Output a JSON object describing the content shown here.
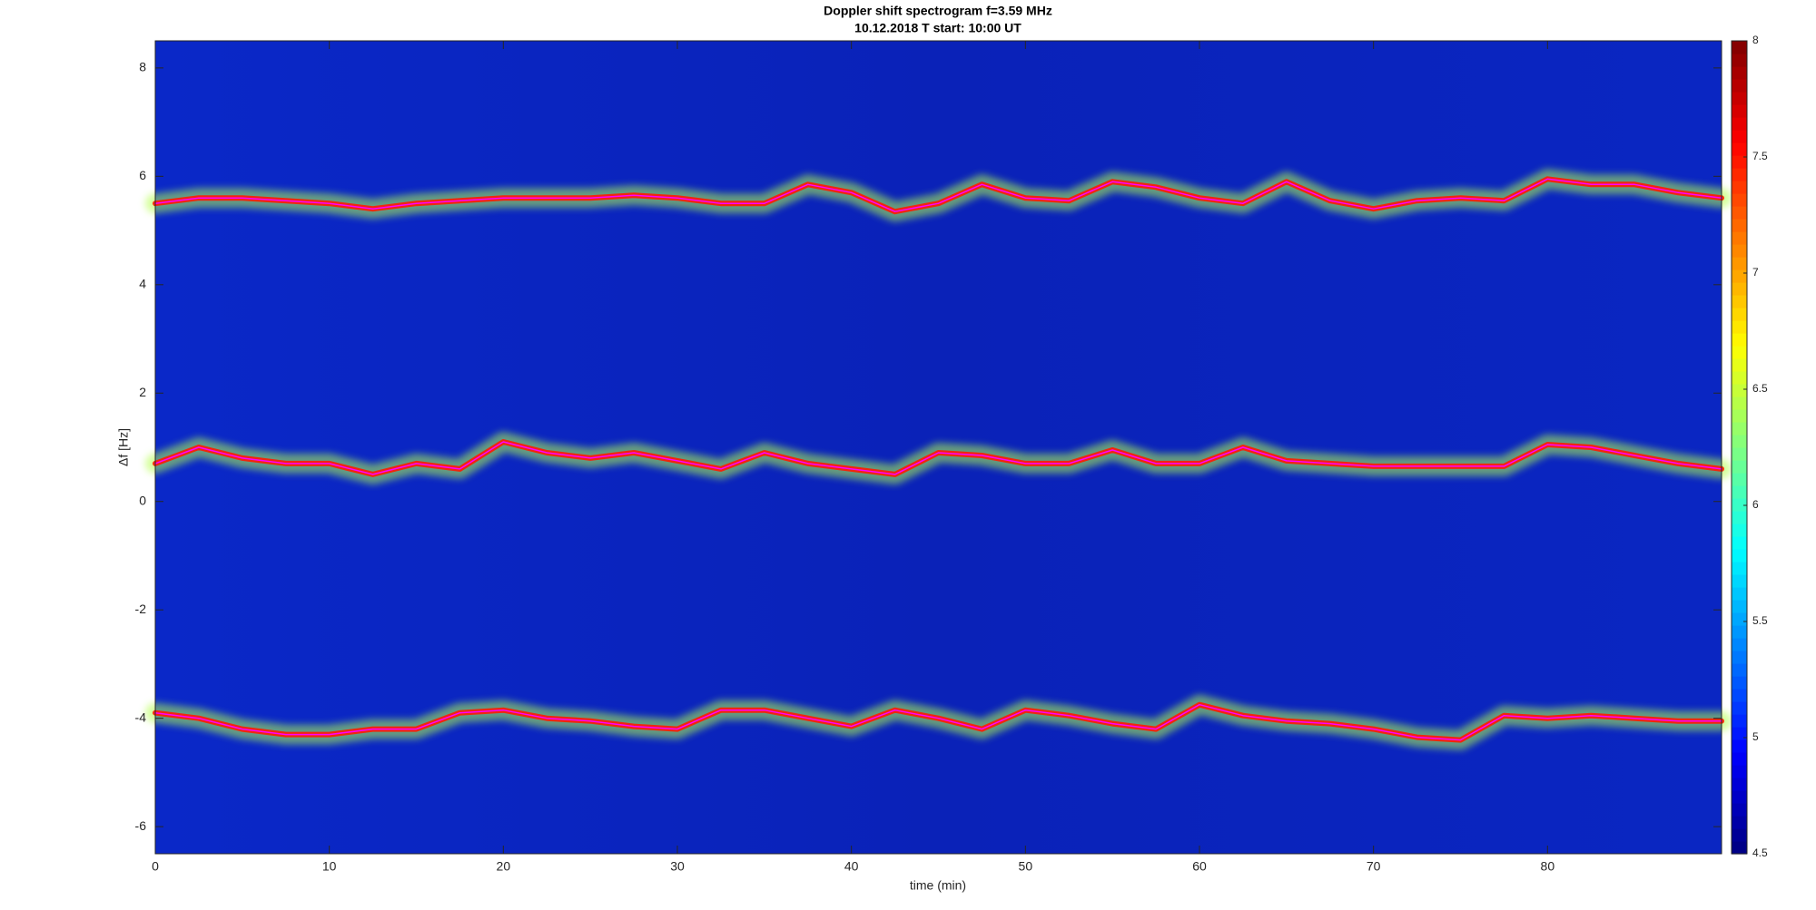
{
  "chart_data": {
    "type": "spectrogram",
    "title": "Doppler shift spectrogram f=3.59 MHz",
    "subtitle": "10.12.2018   T start: 10:00 UT",
    "x_label": "time (min)",
    "y_label": "Δf [Hz]",
    "xlim": [
      0,
      90
    ],
    "xticks": [
      0,
      10,
      20,
      30,
      40,
      50,
      60,
      70,
      80
    ],
    "ylim": [
      -6.5,
      8.5
    ],
    "yticks": [
      -6,
      -4,
      -2,
      0,
      2,
      4,
      6,
      8
    ],
    "colormap": "jet",
    "clim": [
      4.5,
      8
    ],
    "cticks": [
      4.5,
      5,
      5.5,
      6,
      6.5,
      7,
      7.5,
      8
    ],
    "x": [
      0,
      2.5,
      5,
      7.5,
      10,
      12.5,
      15,
      17.5,
      20,
      22.5,
      25,
      27.5,
      30,
      32.5,
      35,
      37.5,
      40,
      42.5,
      45,
      47.5,
      50,
      52.5,
      55,
      57.5,
      60,
      62.5,
      65,
      67.5,
      70,
      72.5,
      75,
      77.5,
      80,
      82.5,
      85,
      87.5,
      90
    ],
    "series": [
      {
        "color": "#ff00ff",
        "values": [
          5.5,
          5.6,
          5.6,
          5.55,
          5.5,
          5.4,
          5.5,
          5.55,
          5.6,
          5.6,
          5.6,
          5.65,
          5.6,
          5.5,
          5.5,
          5.85,
          5.7,
          5.35,
          5.5,
          5.85,
          5.6,
          5.55,
          5.9,
          5.8,
          5.6,
          5.5,
          5.9,
          5.55,
          5.4,
          5.55,
          5.6,
          5.55,
          5.95,
          5.85,
          5.85,
          5.7,
          5.6
        ]
      },
      {
        "color": "#ff00ff",
        "values": [
          0.7,
          1.0,
          0.8,
          0.7,
          0.7,
          0.5,
          0.7,
          0.6,
          1.1,
          0.9,
          0.8,
          0.9,
          0.75,
          0.6,
          0.9,
          0.7,
          0.6,
          0.5,
          0.9,
          0.85,
          0.7,
          0.7,
          0.95,
          0.7,
          0.7,
          1.0,
          0.75,
          0.7,
          0.65,
          0.65,
          0.65,
          0.65,
          1.05,
          1.0,
          0.85,
          0.7,
          0.6
        ]
      },
      {
        "color": "#ff00ff",
        "values": [
          -3.9,
          -4.0,
          -4.2,
          -4.3,
          -4.3,
          -4.2,
          -4.2,
          -3.9,
          -3.85,
          -4.0,
          -4.05,
          -4.15,
          -4.2,
          -3.85,
          -3.85,
          -4.0,
          -4.15,
          -3.85,
          -4.0,
          -4.2,
          -3.85,
          -3.95,
          -4.1,
          -4.2,
          -3.75,
          -3.95,
          -4.05,
          -4.1,
          -4.2,
          -4.35,
          -4.4,
          -3.95,
          -4.0,
          -3.95,
          -4.0,
          -4.05,
          -4.05
        ]
      }
    ]
  }
}
